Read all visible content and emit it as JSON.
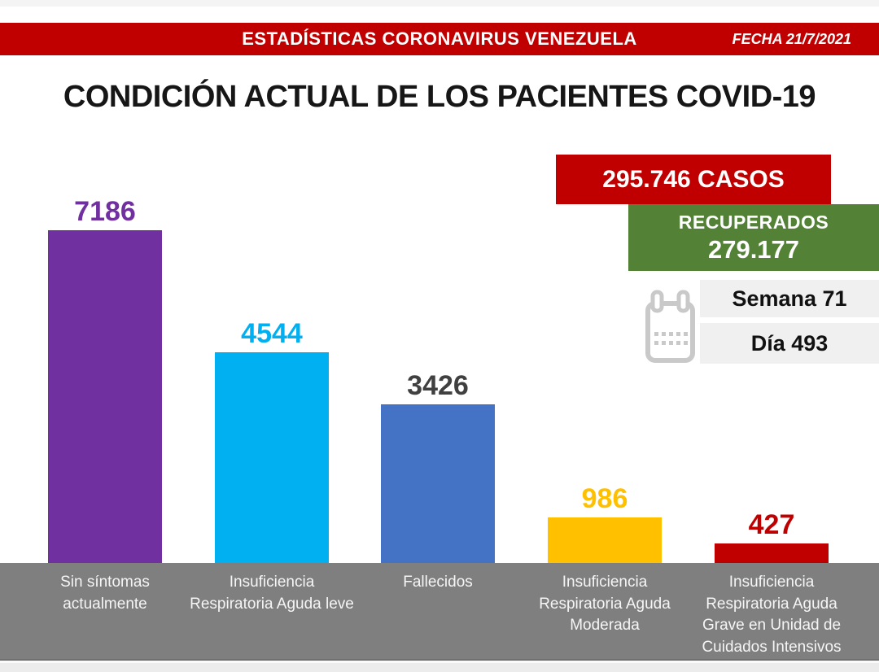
{
  "header": {
    "title": "ESTADÍSTICAS CORONAVIRUS VENEZUELA",
    "date": "FECHA 21/7/2021",
    "bar_color": "#C00000"
  },
  "title": "CONDICIÓN ACTUAL DE LOS PACIENTES COVID-19",
  "stats": {
    "total_cases": "295.746 CASOS",
    "total_cases_color": "#C00000",
    "recovered_label": "RECUPERADOS",
    "recovered_value": "279.177",
    "recovered_color": "#538135",
    "week": "Semana 71",
    "day": "Día 493"
  },
  "icons": {
    "calendar": "calendar-icon",
    "calendar_color": "#c9c9c9"
  },
  "chart_data": {
    "type": "bar",
    "title": "CONDICIÓN ACTUAL DE LOS PACIENTES COVID-19",
    "categories": [
      "Sin síntomas actualmente",
      "Insuficiencia Respiratoria Aguda leve",
      "Fallecidos",
      "Insuficiencia Respiratoria Aguda Moderada",
      "Insuficiencia Respiratoria Aguda Grave en Unidad de Cuidados Intensivos"
    ],
    "values": [
      7186,
      4544,
      3426,
      986,
      427
    ],
    "ylim": [
      0,
      7500
    ],
    "grid": false,
    "legend": false,
    "axis_band_color": "#7f7f7f",
    "bars": [
      {
        "label": "Sin síntomas\nactualmente",
        "value": 7186,
        "color": "#7030A0",
        "value_color": "#7030A0"
      },
      {
        "label": "Insuficiencia\nRespiratoria Aguda leve",
        "value": 4544,
        "color": "#00B0F0",
        "value_color": "#00B0F0"
      },
      {
        "label": "Fallecidos",
        "value": 3426,
        "color": "#4472C4",
        "value_color": "#404040"
      },
      {
        "label": "Insuficiencia\nRespiratoria Aguda\nModerada",
        "value": 986,
        "color": "#FFC000",
        "value_color": "#FFC000"
      },
      {
        "label": "Insuficiencia\nRespiratoria Aguda\nGrave en Unidad de\nCuidados Intensivos",
        "value": 427,
        "color": "#C00000",
        "value_color": "#C00000"
      }
    ]
  }
}
